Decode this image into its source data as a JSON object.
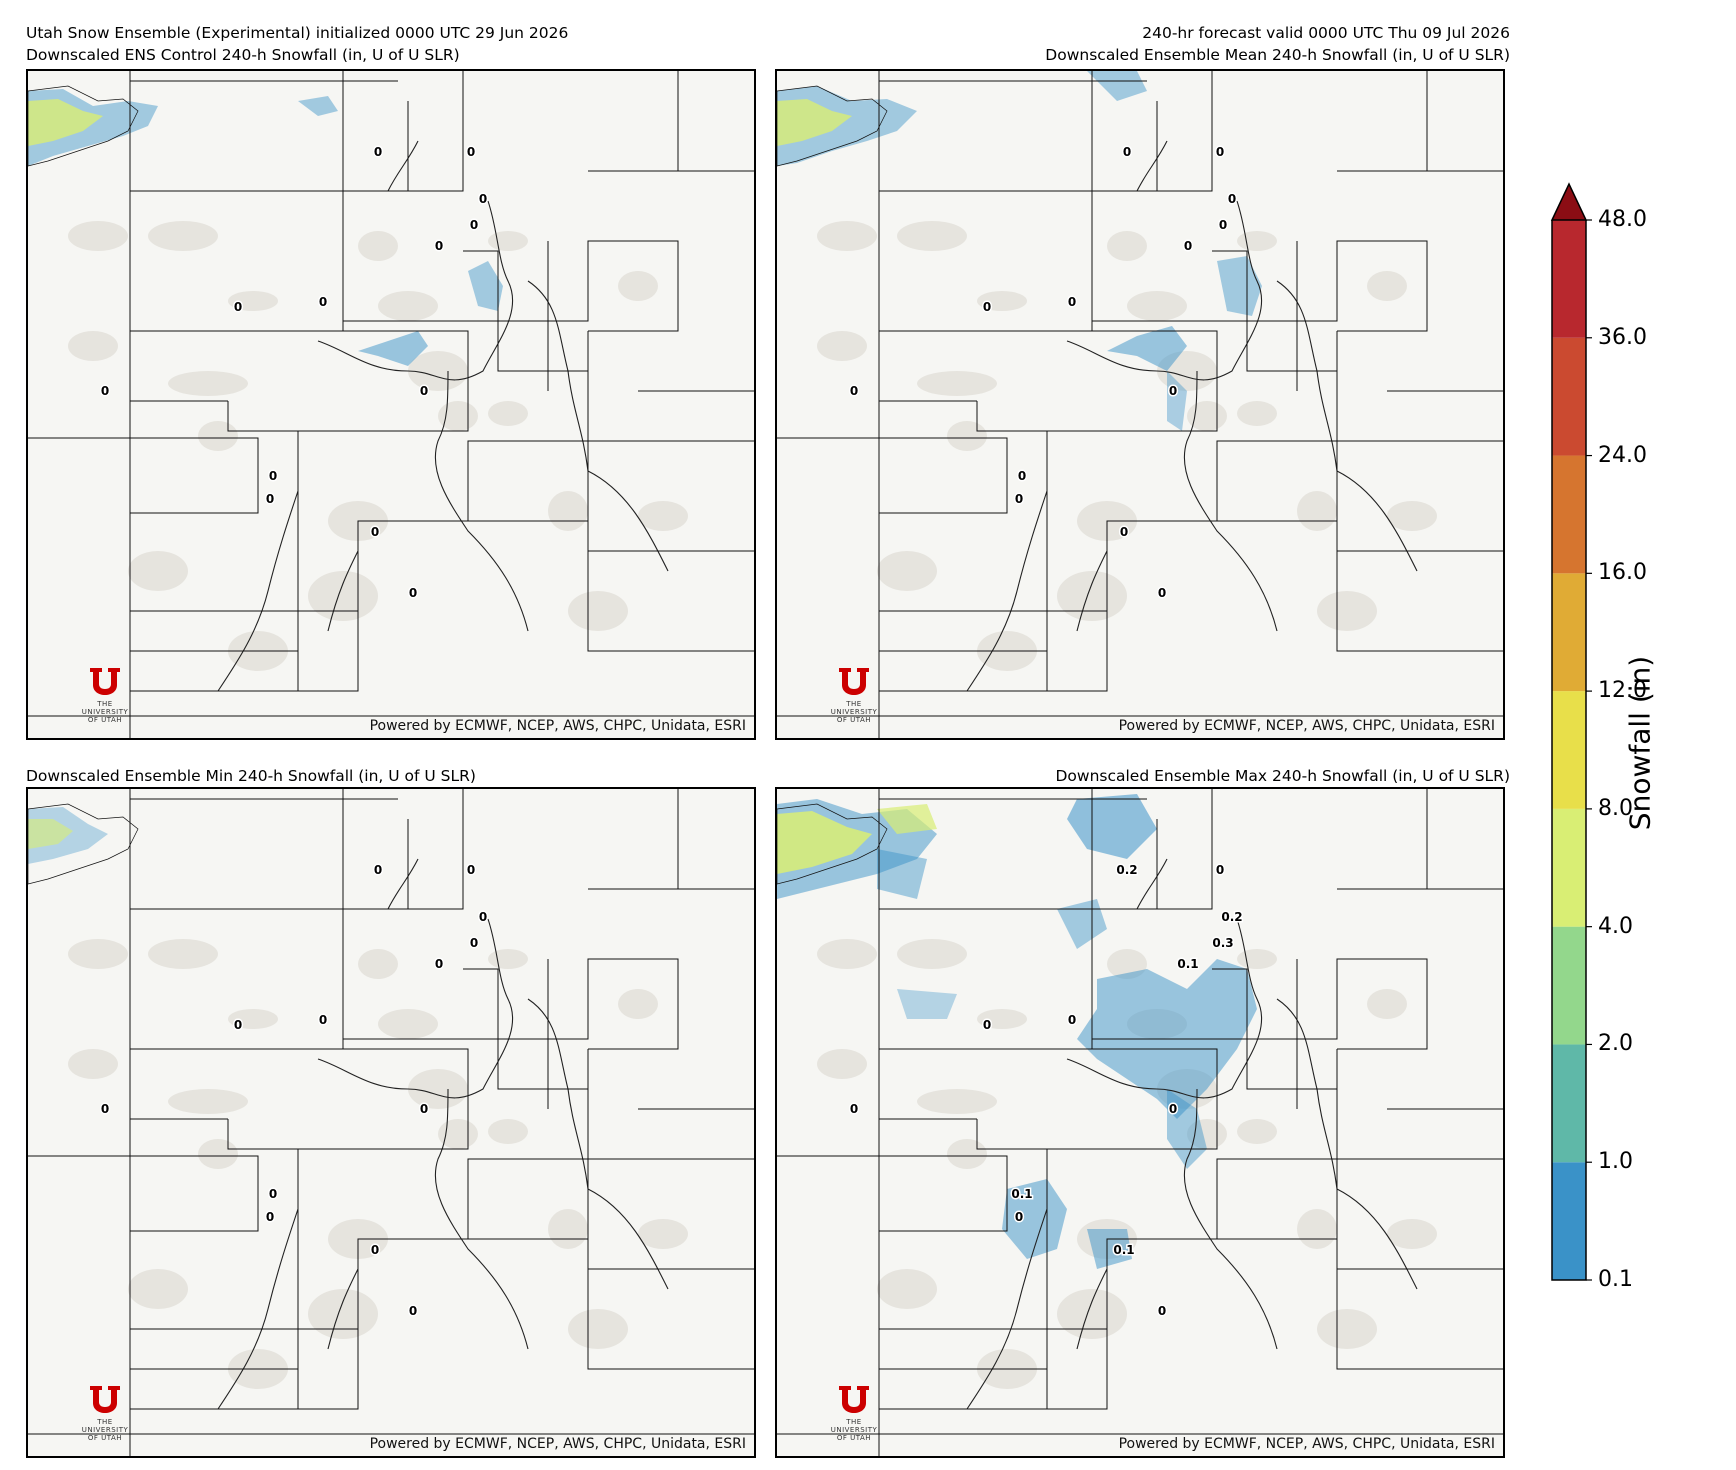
{
  "headers": {
    "top_left_line1": "Utah Snow Ensemble (Experimental) initialized 0000 UTC 29 Jun 2026",
    "top_left_line2": "Downscaled ENS Control 240-h Snowfall (in, U of U SLR)",
    "top_right_line1": "240-hr forecast valid 0000 UTC Thu 09 Jul 2026",
    "top_right_line2": "Downscaled Ensemble Mean 240-h Snowfall (in, U of U SLR)",
    "bottom_left": "Downscaled Ensemble Min 240-h Snowfall (in, U of U SLR)",
    "bottom_right": "Downscaled Ensemble Max 240-h Snowfall (in, U of U SLR)"
  },
  "credit": "Powered by ECMWF, NCEP, AWS, CHPC, Unidata, ESRI",
  "logo": {
    "mark": "U",
    "small": "THE",
    "name": "UNIVERSITY",
    "sub": "OF UTAH"
  },
  "colorbar": {
    "title": "Snowfall (in)",
    "levels": [
      "0.1",
      "1.0",
      "2.0",
      "4.0",
      "8.0",
      "12.0",
      "16.0",
      "24.0",
      "36.0",
      "48.0"
    ],
    "colors": [
      "#3a92c8",
      "#5fb8a8",
      "#93d78c",
      "#d9ee74",
      "#e8df4a",
      "#e0ab35",
      "#d6752f",
      "#cb4a30",
      "#b8282e"
    ],
    "extend_color": "#8b0d14"
  },
  "point_labels": {
    "control": [
      "0",
      "0",
      "0",
      "0",
      "0",
      "0",
      "0",
      "0",
      "0",
      "0",
      "0",
      "0",
      "0"
    ],
    "mean": [
      "0",
      "0",
      "0",
      "0",
      "0",
      "0",
      "0",
      "0",
      "0",
      "0",
      "0",
      "0",
      "0"
    ],
    "min": [
      "0",
      "0",
      "0",
      "0",
      "0",
      "0",
      "0",
      "0",
      "0",
      "0",
      "0",
      "0",
      "0"
    ],
    "max": [
      "0.2",
      "0",
      "0.2",
      "0.3",
      "0.1",
      "0",
      "0",
      "0",
      "0",
      "0.1",
      "0",
      "0.1",
      "0"
    ]
  }
}
